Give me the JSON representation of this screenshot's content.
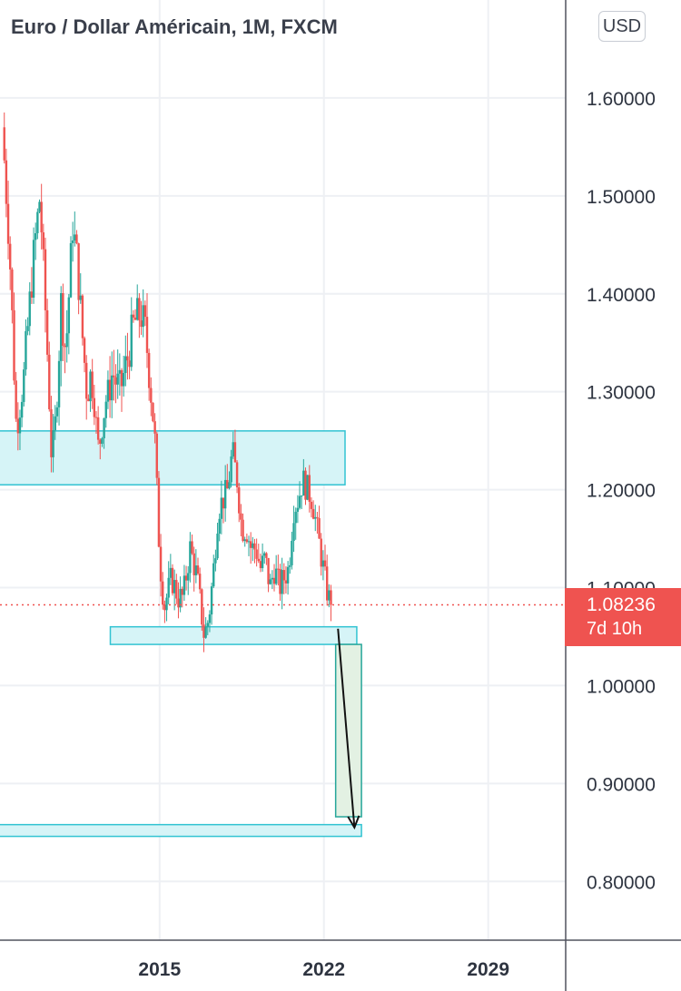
{
  "header": {
    "title": "Euro / Dollar Américain, 1M, FXCM",
    "currency": "USD"
  },
  "price_tag": {
    "price": "1.08236",
    "countdown": "7d 10h"
  },
  "colors": {
    "up": "#26a69a",
    "down": "#ef5350",
    "zone_fill": "#d6f4f7",
    "zone_stroke": "#32c3d2",
    "target_fill": "#e3f1e3",
    "target_stroke": "#26a69a",
    "grid": "#eef0f4"
  },
  "chart_data": {
    "type": "candlestick",
    "symbol": "EUR/USD",
    "interval": "1M",
    "y_axis": {
      "ticks": [
        "0.80000",
        "0.90000",
        "1.00000",
        "1.10000",
        "1.20000",
        "1.30000",
        "1.40000",
        "1.50000",
        "1.60000"
      ],
      "ylim": [
        0.74,
        1.7
      ]
    },
    "x_axis": {
      "ticks": [
        "2015",
        "2022",
        "2029"
      ],
      "xlim": [
        2008.2,
        2032.3
      ]
    },
    "last_price": 1.08236,
    "series_monthly_close": [
      [
        2008.3,
        1.57
      ],
      [
        2008.6,
        1.45
      ],
      [
        2008.9,
        1.26
      ],
      [
        2009.2,
        1.31
      ],
      [
        2009.6,
        1.43
      ],
      [
        2009.9,
        1.5
      ],
      [
        2010.2,
        1.35
      ],
      [
        2010.4,
        1.23
      ],
      [
        2010.6,
        1.28
      ],
      [
        2010.8,
        1.39
      ],
      [
        2011.0,
        1.34
      ],
      [
        2011.3,
        1.47
      ],
      [
        2011.5,
        1.43
      ],
      [
        2011.7,
        1.36
      ],
      [
        2011.9,
        1.3
      ],
      [
        2012.1,
        1.32
      ],
      [
        2012.4,
        1.24
      ],
      [
        2012.7,
        1.29
      ],
      [
        2013.0,
        1.32
      ],
      [
        2013.3,
        1.3
      ],
      [
        2013.6,
        1.33
      ],
      [
        2013.9,
        1.37
      ],
      [
        2014.2,
        1.38
      ],
      [
        2014.4,
        1.36
      ],
      [
        2014.6,
        1.31
      ],
      [
        2014.8,
        1.25
      ],
      [
        2015.0,
        1.13
      ],
      [
        2015.2,
        1.08
      ],
      [
        2015.5,
        1.11
      ],
      [
        2015.8,
        1.09
      ],
      [
        2016.0,
        1.09
      ],
      [
        2016.3,
        1.14
      ],
      [
        2016.6,
        1.11
      ],
      [
        2016.9,
        1.05
      ],
      [
        2017.1,
        1.07
      ],
      [
        2017.3,
        1.12
      ],
      [
        2017.5,
        1.18
      ],
      [
        2017.7,
        1.19
      ],
      [
        2017.9,
        1.2
      ],
      [
        2018.1,
        1.24
      ],
      [
        2018.3,
        1.21
      ],
      [
        2018.5,
        1.16
      ],
      [
        2018.7,
        1.16
      ],
      [
        2018.9,
        1.14
      ],
      [
        2019.1,
        1.14
      ],
      [
        2019.3,
        1.12
      ],
      [
        2019.5,
        1.13
      ],
      [
        2019.7,
        1.1
      ],
      [
        2019.9,
        1.12
      ],
      [
        2020.1,
        1.1
      ],
      [
        2020.3,
        1.11
      ],
      [
        2020.5,
        1.12
      ],
      [
        2020.7,
        1.18
      ],
      [
        2020.9,
        1.19
      ],
      [
        2021.1,
        1.21
      ],
      [
        2021.3,
        1.2
      ],
      [
        2021.5,
        1.19
      ],
      [
        2021.7,
        1.16
      ],
      [
        2021.9,
        1.13
      ],
      [
        2022.1,
        1.1
      ],
      [
        2022.2,
        1.09
      ],
      [
        2022.3,
        1.08
      ]
    ],
    "zones": [
      {
        "x_start": 2008.0,
        "x_end": 2022.9,
        "y_low": 1.205,
        "y_high": 1.26
      },
      {
        "x_start": 2012.9,
        "x_end": 2023.4,
        "y_low": 1.042,
        "y_high": 1.06
      },
      {
        "x_start": 2008.0,
        "x_end": 2023.6,
        "y_low": 0.846,
        "y_high": 0.858
      }
    ],
    "target_box": {
      "x_start": 2022.5,
      "x_end": 2023.6,
      "y_low": 0.866,
      "y_high": 1.042
    },
    "arrow": {
      "x_start": 2022.6,
      "y_start": 1.058,
      "x_end": 2023.3,
      "y_end": 0.855
    }
  }
}
